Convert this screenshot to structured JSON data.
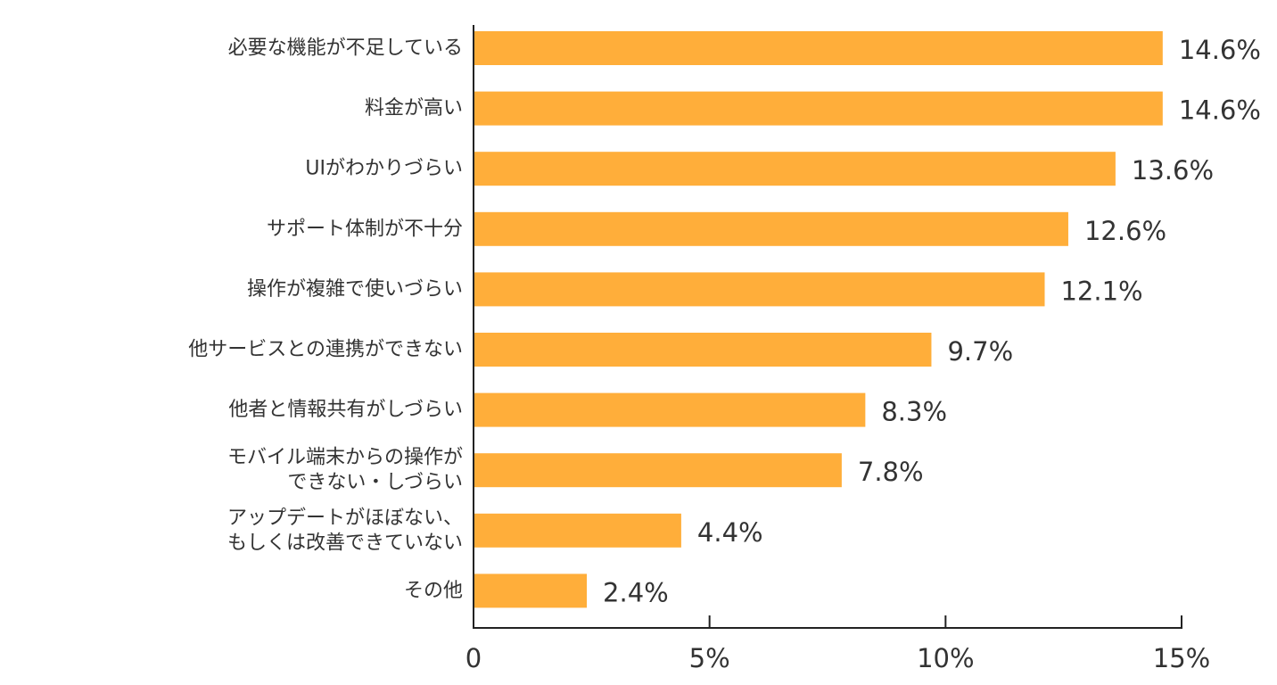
{
  "chart_data": {
    "type": "bar",
    "orientation": "horizontal",
    "categories": [
      [
        "必要な機能が不足している"
      ],
      [
        "料金が高い"
      ],
      [
        "UIがわかりづらい"
      ],
      [
        "サポート体制が不十分"
      ],
      [
        "操作が複雑で使いづらい"
      ],
      [
        "他サービスとの連携ができない"
      ],
      [
        "他者と情報共有がしづらい"
      ],
      [
        "モバイル端末からの操作が",
        "できない・しづらい"
      ],
      [
        "アップデートがほぼない、",
        "もしくは改善できていない"
      ],
      [
        "その他"
      ]
    ],
    "values": [
      14.6,
      14.6,
      13.6,
      12.6,
      12.1,
      9.7,
      8.3,
      7.8,
      4.4,
      2.4
    ],
    "value_labels": [
      "14.6%",
      "14.6%",
      "13.6%",
      "12.6%",
      "12.1%",
      "9.7%",
      "8.3%",
      "7.8%",
      "4.4%",
      "2.4%"
    ],
    "xlim": [
      0,
      15
    ],
    "ticks": [
      0,
      5,
      10,
      15
    ],
    "tick_labels": [
      "0",
      "5%",
      "10%",
      "15%"
    ],
    "bar_color": "#FFAE3A",
    "grid": false,
    "legend": "none",
    "title": "",
    "xlabel": "",
    "ylabel": ""
  }
}
